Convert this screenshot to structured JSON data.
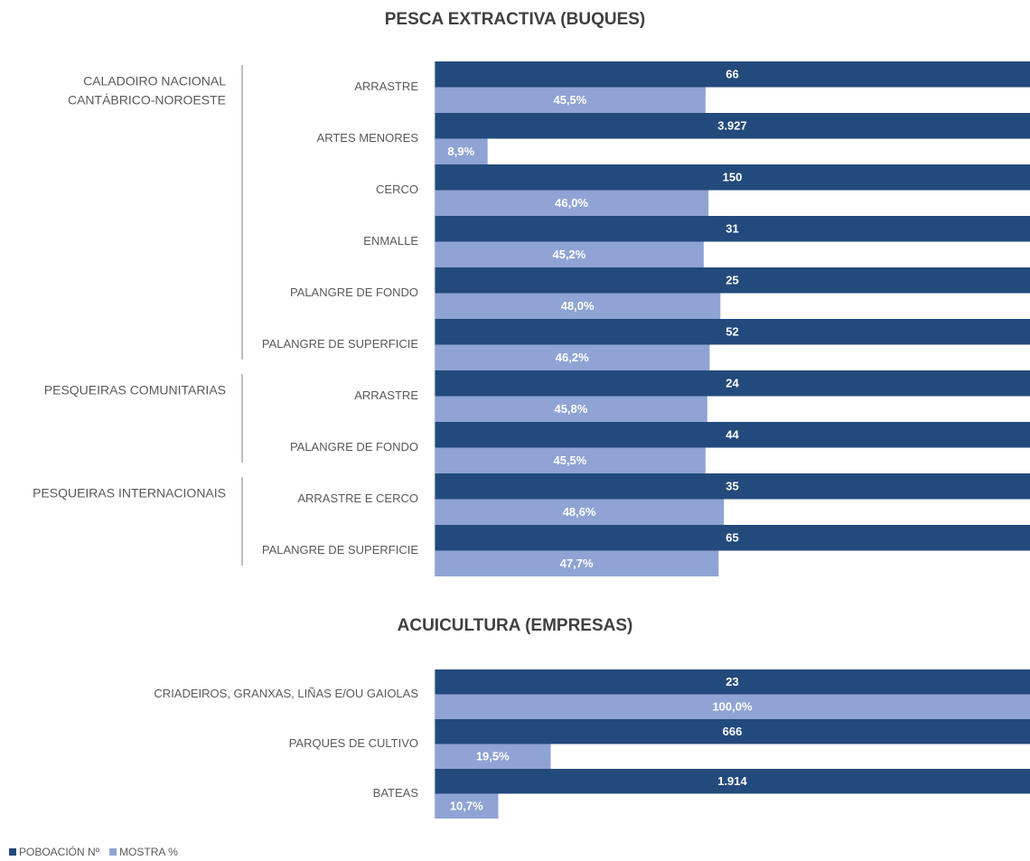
{
  "chart_data": [
    {
      "type": "bar",
      "title": "PESCA EXTRACTIVA (BUQUES)",
      "groups": [
        {
          "label": [
            "CALADOIRO NACIONAL",
            "CANTÁBRICO-NOROESTE"
          ],
          "categories": [
            "ARRASTRE",
            "ARTES MENORES",
            "CERCO",
            "ENMALLE",
            "PALANGRE DE FONDO",
            "PALANGRE DE SUPERFICIE"
          ]
        },
        {
          "label": [
            "PESQUEIRAS COMUNITARIAS"
          ],
          "categories": [
            "ARRASTRE",
            "PALANGRE DE FONDO"
          ]
        },
        {
          "label": [
            "PESQUEIRAS INTERNACIONAIS"
          ],
          "categories": [
            "ARRASTRE E CERCO",
            "PALANGRE DE SUPERFICIE"
          ]
        }
      ],
      "xlim": [
        0,
        100
      ],
      "series": [
        {
          "name": "POBOACIÓN Nº",
          "color": "#234a7c",
          "values": [
            66,
            3927,
            150,
            31,
            25,
            52,
            24,
            44,
            35,
            65
          ],
          "value_labels": [
            "66",
            "3.927",
            "150",
            "31",
            "25",
            "52",
            "24",
            "44",
            "35",
            "65"
          ]
        },
        {
          "name": "MOSTRA %",
          "color": "#8fa3d4",
          "values": [
            45.5,
            8.9,
            46.0,
            45.2,
            48.0,
            46.2,
            45.8,
            45.5,
            48.6,
            47.7
          ],
          "value_labels": [
            "45,5%",
            "8,9%",
            "46,0%",
            "45,2%",
            "48,0%",
            "46,2%",
            "45,8%",
            "45,5%",
            "48,6%",
            "47,7%"
          ]
        }
      ]
    },
    {
      "type": "bar",
      "title": "ACUICULTURA (EMPRESAS)",
      "categories": [
        "CRIADEIROS, GRANXAS, LIÑAS E/OU GAIOLAS",
        "PARQUES DE CULTIVO",
        "BATEAS"
      ],
      "xlim": [
        0,
        100
      ],
      "series": [
        {
          "name": "POBOACIÓN Nº",
          "color": "#234a7c",
          "values": [
            23,
            666,
            1914
          ],
          "value_labels": [
            "23",
            "666",
            "1.914"
          ]
        },
        {
          "name": "MOSTRA %",
          "color": "#8fa3d4",
          "values": [
            100.0,
            19.5,
            10.7
          ],
          "value_labels": [
            "100,0%",
            "19,5%",
            "10,7%"
          ]
        }
      ]
    }
  ]
}
